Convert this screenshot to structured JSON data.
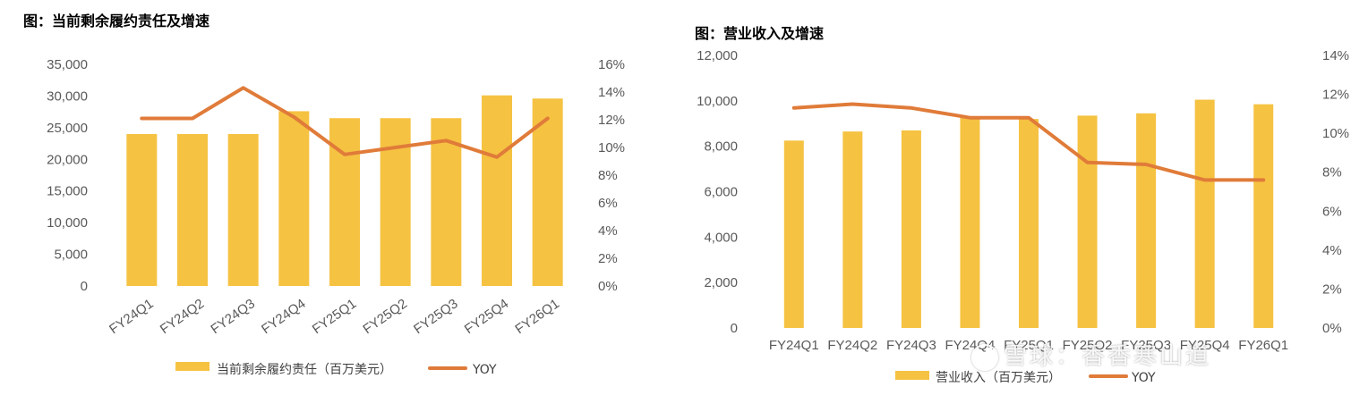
{
  "chart_data": [
    {
      "type": "bar",
      "title": "图：当前剩余履约责任及增速",
      "categories": [
        "FY24Q1",
        "FY24Q2",
        "FY24Q3",
        "FY24Q4",
        "FY25Q1",
        "FY25Q2",
        "FY25Q3",
        "FY25Q4",
        "FY26Q1"
      ],
      "series": [
        {
          "name": "当前剩余履约责任（百万美元）",
          "type": "bar",
          "axis": "left",
          "color": "#F5C242",
          "values": [
            24000,
            24000,
            24000,
            27600,
            26500,
            26500,
            26500,
            30100,
            29600
          ]
        },
        {
          "name": "YOY",
          "type": "line",
          "axis": "right",
          "color": "#E07B39",
          "values": [
            12.1,
            12.1,
            14.3,
            12.2,
            9.5,
            10.0,
            10.5,
            9.3,
            12.1
          ]
        }
      ],
      "ylim": [
        0,
        35000
      ],
      "yticks": [
        "0",
        "5,000",
        "10,000",
        "15,000",
        "20,000",
        "25,000",
        "30,000",
        "35,000"
      ],
      "y2lim": [
        0,
        16
      ],
      "y2ticks": [
        "0%",
        "2%",
        "4%",
        "6%",
        "8%",
        "10%",
        "12%",
        "14%",
        "16%"
      ],
      "xlabel": "",
      "ylabel": "",
      "grid": false,
      "legend_position": "bottom",
      "x_tick_rotation": "slanted"
    },
    {
      "type": "bar",
      "title": "图：营业收入及增速",
      "categories": [
        "FY24Q1",
        "FY24Q2",
        "FY24Q3",
        "FY24Q4",
        "FY25Q1",
        "FY25Q2",
        "FY25Q3",
        "FY25Q4",
        "FY26Q1"
      ],
      "series": [
        {
          "name": "营业收入（百万美元）",
          "type": "bar",
          "axis": "left",
          "color": "#F5C242",
          "values": [
            8250,
            8650,
            8700,
            9300,
            9200,
            9350,
            9450,
            10050,
            9850
          ]
        },
        {
          "name": "YOY",
          "type": "line",
          "axis": "right",
          "color": "#E07B39",
          "values": [
            11.3,
            11.5,
            11.3,
            10.8,
            10.8,
            8.5,
            8.4,
            7.6,
            7.6
          ]
        }
      ],
      "ylim": [
        0,
        12000
      ],
      "yticks": [
        "0",
        "2,000",
        "4,000",
        "6,000",
        "8,000",
        "10,000",
        "12,000"
      ],
      "y2lim": [
        0,
        14
      ],
      "y2ticks": [
        "0%",
        "2%",
        "4%",
        "6%",
        "8%",
        "10%",
        "12%",
        "14%"
      ],
      "xlabel": "",
      "ylabel": "",
      "grid": false,
      "legend_position": "bottom",
      "x_tick_rotation": "horizontal"
    }
  ],
  "watermark": {
    "text": "雪球：香香寒山道"
  }
}
